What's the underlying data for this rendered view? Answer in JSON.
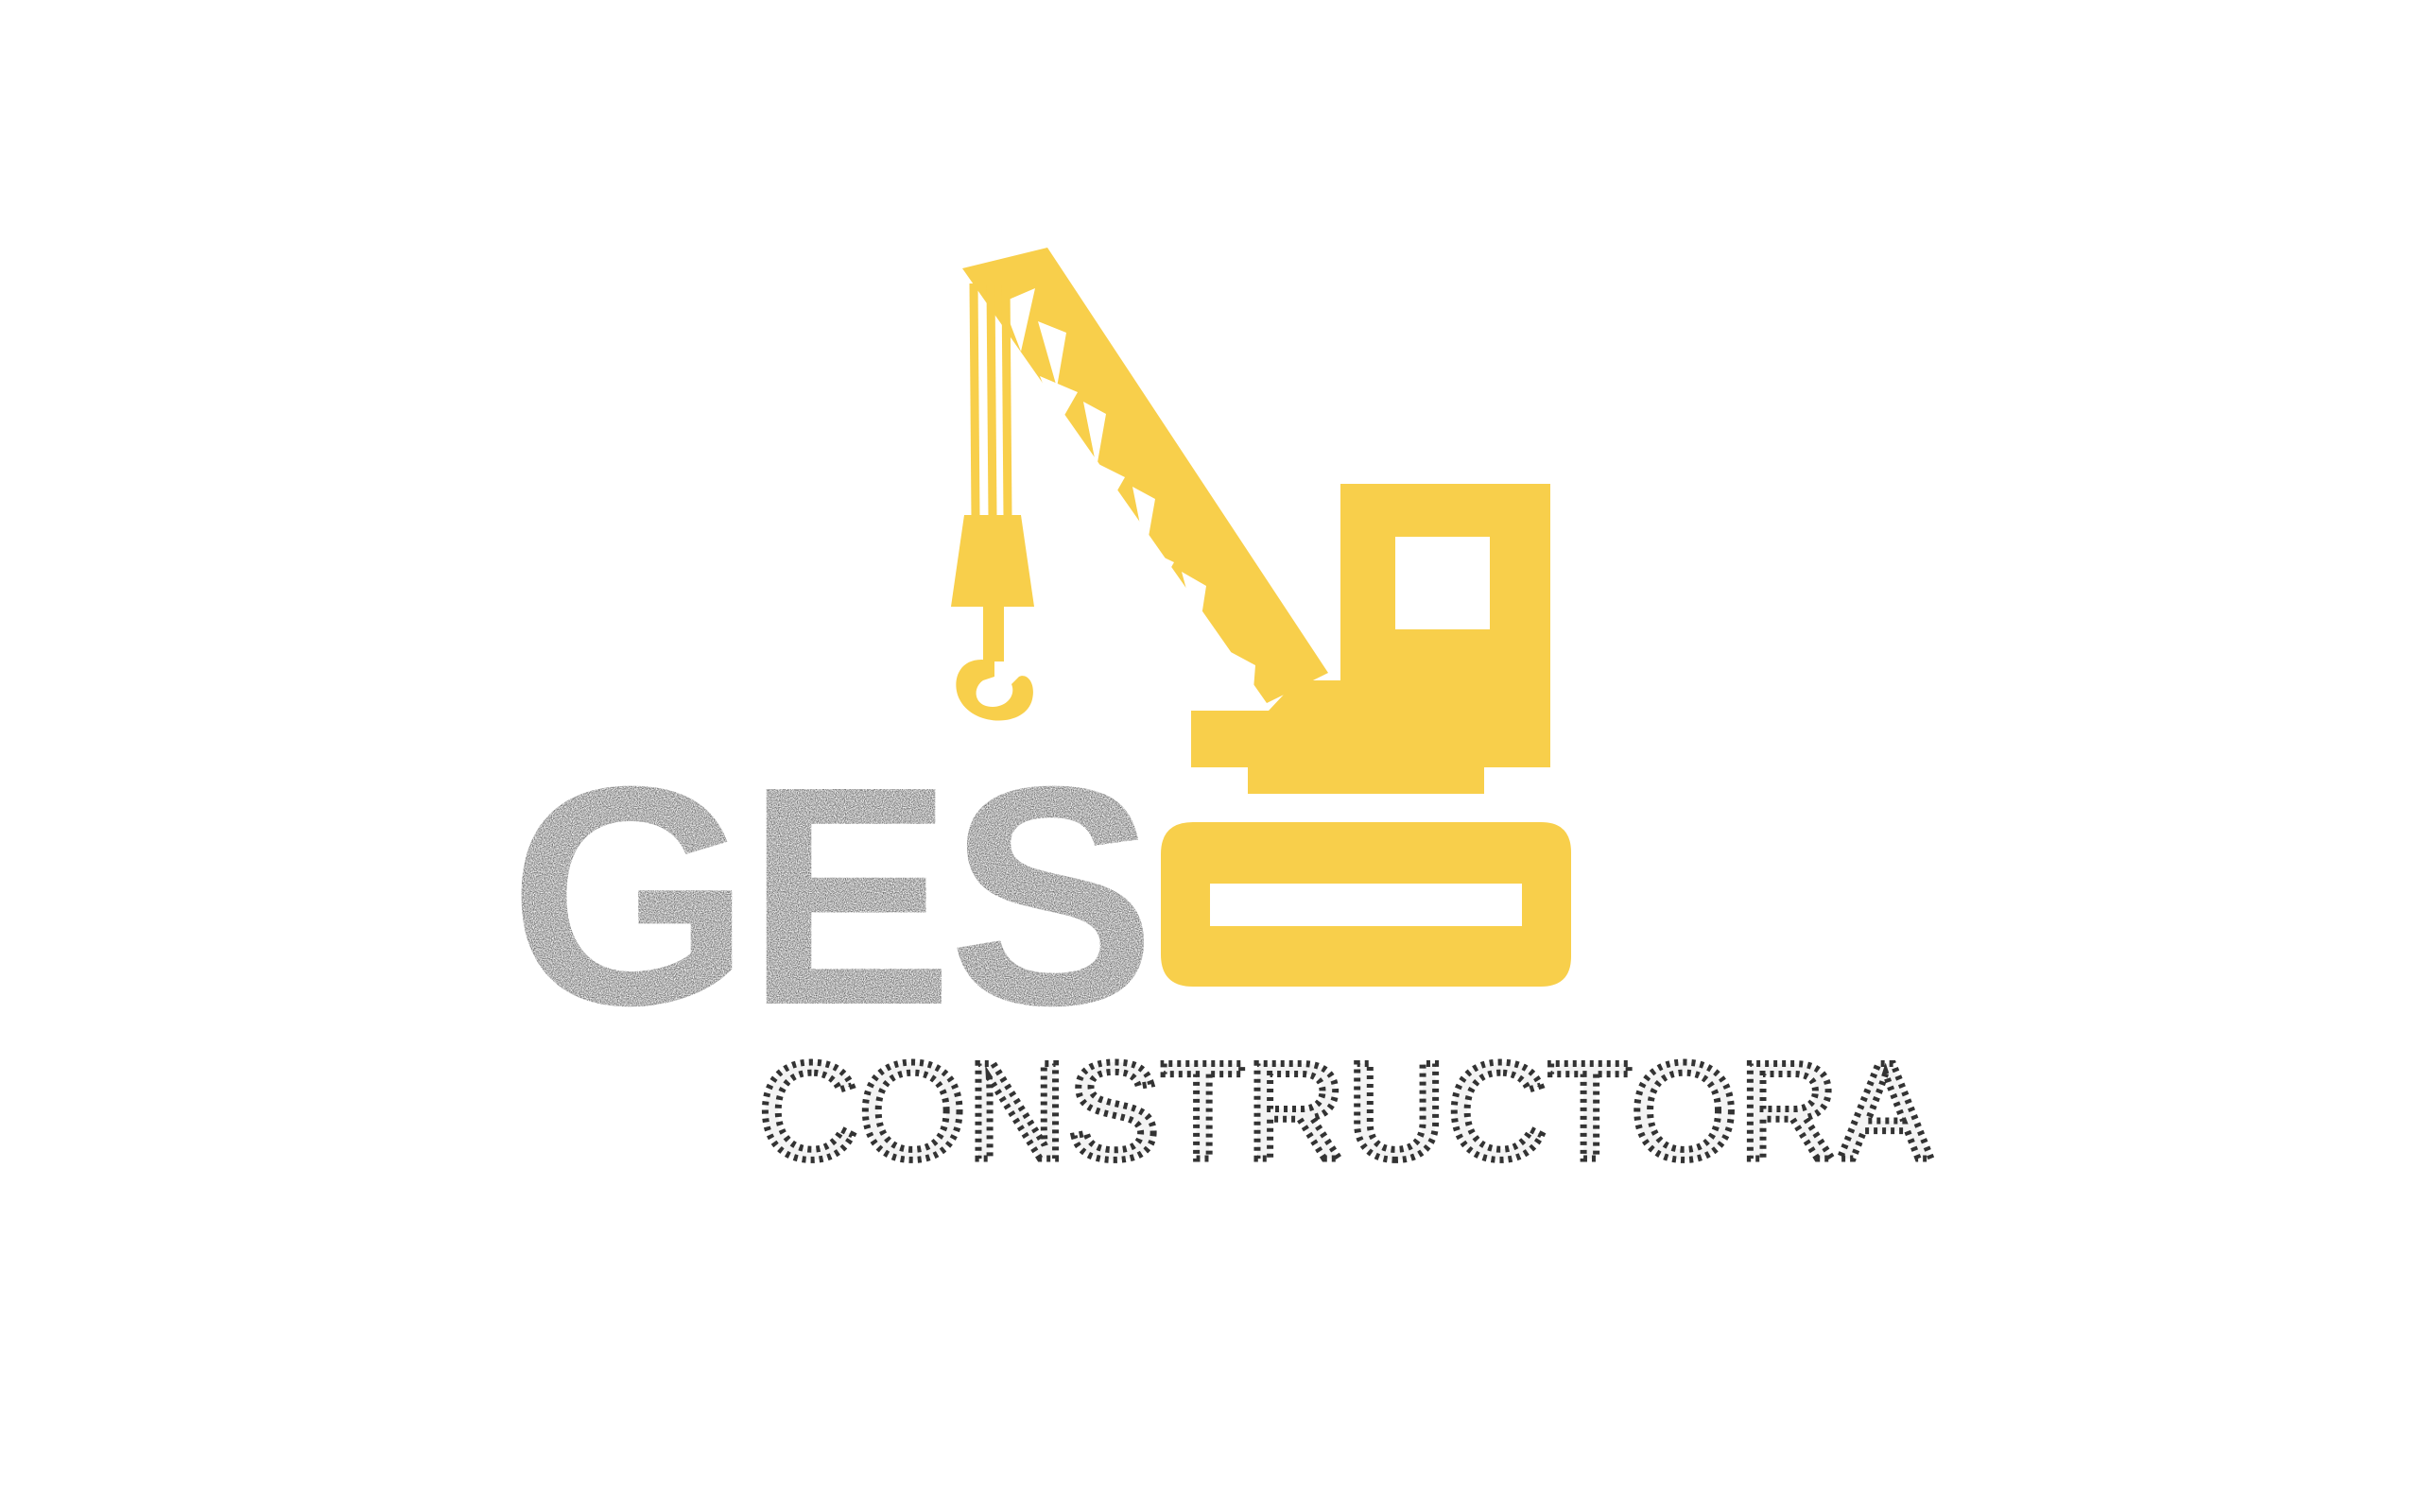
{
  "logo": {
    "brand_name": "GES",
    "tagline": "CONSTRUCTORA",
    "icon": "crawler-crane-icon",
    "colors": {
      "background": "#ffffff",
      "crane_yellow": "#f8cf4b",
      "brand_text": "#2a2a2a",
      "tagline_dots": "#3a3a3a"
    }
  }
}
